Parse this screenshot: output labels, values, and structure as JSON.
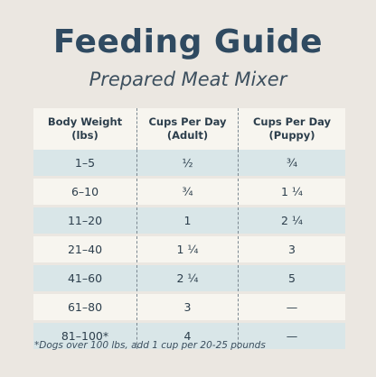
{
  "title": "Feeding Guide",
  "subtitle": "Prepared Meat Mixer",
  "table": {
    "headers": [
      {
        "line1": "Body Weight",
        "line2": "(lbs)"
      },
      {
        "line1": "Cups Per Day",
        "line2": "(Adult)"
      },
      {
        "line1": "Cups Per Day",
        "line2": "(Puppy)"
      }
    ],
    "rows": [
      [
        "1–5",
        "½",
        "¾"
      ],
      [
        "6–10",
        "¾",
        "1 ¼"
      ],
      [
        "11–20",
        "1",
        "2 ¼"
      ],
      [
        "21–40",
        "1 ¼",
        "3"
      ],
      [
        "41–60",
        "2 ¼",
        "5"
      ],
      [
        "61–80",
        "3",
        "—"
      ],
      [
        "81–100*",
        "4",
        "—"
      ]
    ]
  },
  "footnote": "*Dogs over 100 lbs, add 1 cup per 20-25 pounds",
  "colors": {
    "background": "#ebe7e1",
    "row_shaded": "#d9e6e8",
    "row_plain": "#f7f5ef",
    "title": "#2f4a61"
  }
}
